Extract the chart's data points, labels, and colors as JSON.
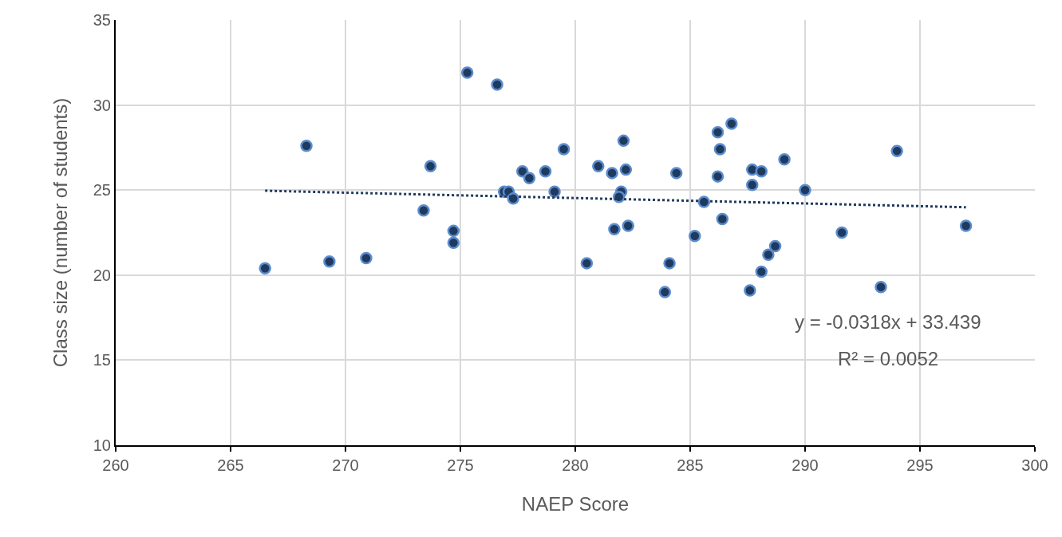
{
  "chart_data": {
    "type": "scatter",
    "xlabel": "NAEP Score",
    "ylabel": "Class size (number of students)",
    "xlim": [
      260,
      300
    ],
    "xticks": [
      260,
      265,
      270,
      275,
      280,
      285,
      290,
      295,
      300
    ],
    "ylim": [
      10,
      35
    ],
    "yticks": [
      10,
      15,
      20,
      25,
      30,
      35
    ],
    "grid": true,
    "marker": "circle",
    "annotations": [
      "y = -0.0318x + 33.439",
      "R² = 0.0052"
    ],
    "series": [
      {
        "color": "#1f3a5f",
        "x": [
          266.5,
          268.3,
          269.3,
          270.9,
          273.7,
          273.4,
          274.7,
          274.7,
          275.3,
          276.6,
          276.9,
          277.1,
          277.3,
          277.7,
          278.0,
          278.7,
          279.1,
          279.5,
          280.5,
          281.0,
          281.6,
          282.1,
          282.2,
          282.0,
          281.9,
          281.7,
          282.3,
          284.4,
          284.1,
          283.9,
          285.2,
          285.6,
          286.2,
          286.8,
          286.3,
          286.2,
          286.4,
          287.7,
          288.1,
          287.7,
          288.7,
          288.4,
          288.1,
          287.6,
          289.1,
          290.0,
          291.6,
          294.0,
          293.3,
          297.0
        ],
        "values": [
          20.4,
          27.6,
          20.8,
          21.0,
          26.4,
          23.8,
          22.6,
          21.9,
          31.9,
          31.2,
          24.9,
          24.9,
          24.5,
          26.1,
          25.7,
          26.1,
          24.9,
          27.4,
          20.7,
          26.4,
          26.0,
          27.9,
          26.2,
          24.9,
          24.6,
          22.7,
          22.9,
          26.0,
          20.7,
          19.0,
          22.3,
          24.3,
          28.4,
          28.9,
          27.4,
          25.8,
          23.3,
          26.2,
          26.1,
          25.3,
          21.7,
          21.2,
          20.2,
          19.1,
          26.8,
          25.0,
          22.5,
          27.3,
          19.3,
          22.9
        ]
      },
      {
        "type": "line",
        "color": "#1f3a5f",
        "line_style": "dotted",
        "marker": "none",
        "x": [
          266.5,
          297.0
        ],
        "values": [
          24.96,
          23.99
        ]
      }
    ]
  }
}
